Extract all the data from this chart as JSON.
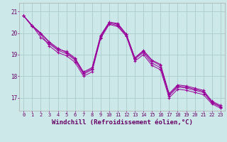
{
  "background_color": "#cce8e8",
  "grid_color": "#aacccc",
  "line_color": "#990099",
  "marker": "+",
  "xlabel": "Windchill (Refroidissement éolien,°C)",
  "xlabel_fontsize": 6.5,
  "xtick_labels": [
    "0",
    "1",
    "2",
    "3",
    "4",
    "5",
    "6",
    "7",
    "8",
    "9",
    "10",
    "11",
    "12",
    "13",
    "14",
    "15",
    "16",
    "17",
    "18",
    "19",
    "20",
    "21",
    "22",
    "23"
  ],
  "ytick_labels": [
    "17",
    "18",
    "19",
    "20",
    "21"
  ],
  "ylim": [
    16.4,
    21.4
  ],
  "xlim": [
    -0.5,
    23.5
  ],
  "series": [
    [
      20.8,
      20.35,
      20.0,
      19.55,
      19.25,
      19.15,
      18.85,
      18.2,
      18.4,
      19.9,
      20.5,
      20.45,
      19.95,
      18.85,
      19.2,
      18.75,
      18.55,
      17.2,
      17.6,
      17.55,
      17.45,
      17.35,
      16.85,
      16.65
    ],
    [
      20.8,
      20.35,
      20.0,
      19.6,
      19.3,
      19.1,
      18.8,
      18.15,
      18.35,
      19.85,
      20.5,
      20.4,
      19.95,
      18.85,
      19.15,
      18.7,
      18.5,
      17.15,
      17.55,
      17.5,
      17.4,
      17.3,
      16.8,
      16.6
    ],
    [
      20.8,
      20.35,
      19.8,
      19.5,
      19.2,
      19.05,
      18.75,
      18.1,
      18.3,
      19.8,
      20.45,
      20.35,
      19.9,
      18.8,
      19.1,
      18.6,
      18.4,
      17.1,
      17.5,
      17.45,
      17.35,
      17.25,
      16.78,
      16.58
    ],
    [
      20.8,
      20.3,
      19.95,
      19.4,
      19.1,
      18.95,
      18.65,
      18.0,
      18.2,
      19.75,
      20.4,
      20.3,
      19.85,
      18.7,
      19.0,
      18.5,
      18.3,
      17.0,
      17.4,
      17.35,
      17.25,
      17.15,
      16.72,
      16.52
    ]
  ]
}
